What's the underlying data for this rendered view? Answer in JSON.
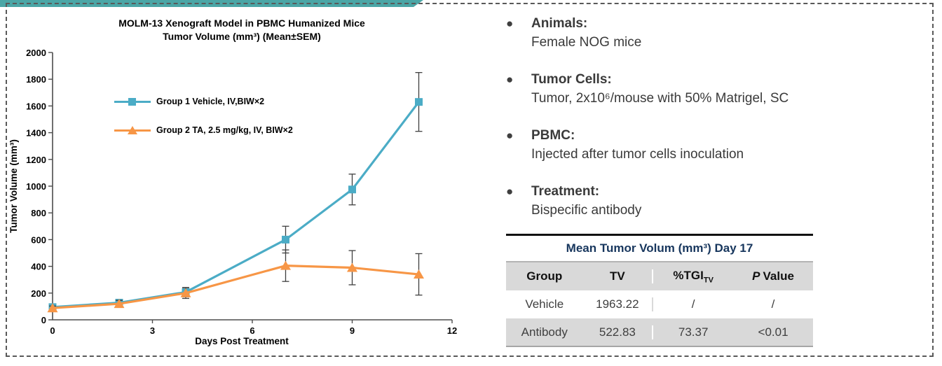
{
  "slide": {
    "top_bar_color": "#4AA6A6",
    "border_color": "#595959"
  },
  "chart_data": {
    "type": "line",
    "title_line1": "MOLM-13 Xenograft Model in PBMC Humanized Mice",
    "title_line2": "Tumor Volume (mm³) (Mean±SEM)",
    "xlabel": "Days Post Treatment",
    "ylabel": "Tumor Volume (mm³)",
    "x": [
      0,
      2,
      4,
      7,
      9,
      11
    ],
    "xlim": [
      0,
      12
    ],
    "ylim": [
      0,
      2000
    ],
    "x_ticks": [
      0,
      3,
      6,
      9,
      12
    ],
    "y_ticks": [
      0,
      200,
      400,
      600,
      800,
      1000,
      1200,
      1400,
      1600,
      1800,
      2000
    ],
    "grid": false,
    "legend_position": "upper-left-inside",
    "error_bar_color": "#404040",
    "series": [
      {
        "name": "Group 1 Vehicle, IV,BIW×2",
        "color": "#4BACC6",
        "marker": "square",
        "values": [
          95,
          128,
          207,
          600,
          975,
          1630
        ],
        "sem": [
          20,
          25,
          35,
          100,
          115,
          220
        ]
      },
      {
        "name": "Group 2 TA, 2.5 mg/kg, IV, BIW×2",
        "color": "#F79646",
        "marker": "triangle",
        "values": [
          88,
          120,
          200,
          405,
          390,
          340
        ],
        "sem": [
          15,
          25,
          40,
          118,
          128,
          155
        ]
      }
    ]
  },
  "bullets": [
    {
      "title": "Animals:",
      "body": "Female NOG mice"
    },
    {
      "title": "Tumor Cells:",
      "body": "Tumor, 2x10⁶/mouse with 50% Matrigel, SC"
    },
    {
      "title": "PBMC:",
      "body": "Injected after tumor cells inoculation"
    },
    {
      "title": "Treatment:",
      "body": "Bispecific antibody"
    }
  ],
  "bullet_glyph": "●",
  "table": {
    "title": "Mean Tumor Volum (mm³) Day 17",
    "headers": {
      "group": "Group",
      "tv": "TV",
      "tgi": "%TGI",
      "tgi_sub": "TV",
      "p_italic": "P",
      "p_rest": "Value"
    },
    "rows": [
      {
        "group": "Vehicle",
        "tv": "1963.22",
        "tgi": "/",
        "p": "/"
      },
      {
        "group": "Antibody",
        "tv": "522.83",
        "tgi": "73.37",
        "p": "<0.01"
      }
    ]
  }
}
